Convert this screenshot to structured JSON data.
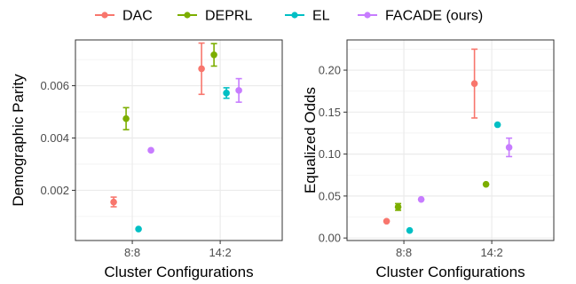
{
  "chart_data": {
    "legend": {
      "placement": "top",
      "entries": [
        {
          "name": "DAC",
          "color": "#F8766D"
        },
        {
          "name": "DEPRL",
          "color": "#7CAE00"
        },
        {
          "name": "EL",
          "color": "#00BFC4"
        },
        {
          "name": "FACADE (ours)",
          "color": "#C77CFF"
        }
      ]
    },
    "panels": [
      {
        "type": "scatter",
        "title": "",
        "xlabel": "Cluster Configurations",
        "ylabel": "Demographic Parity",
        "categories": [
          "8:8",
          "14:2"
        ],
        "ylim": [
          8e-05,
          0.00775
        ],
        "yticks": [
          0.002,
          0.004,
          0.006
        ],
        "ytick_labels": [
          "0.002",
          "0.004",
          "0.006"
        ],
        "grid": true,
        "series": [
          {
            "name": "DAC",
            "points": [
              {
                "x": "8:8",
                "y": 0.00155,
                "lo": 0.00137,
                "hi": 0.00174
              },
              {
                "x": "14:2",
                "y": 0.00665,
                "lo": 0.00567,
                "hi": 0.00763
              }
            ]
          },
          {
            "name": "DEPRL",
            "points": [
              {
                "x": "8:8",
                "y": 0.00474,
                "lo": 0.00432,
                "hi": 0.00516
              },
              {
                "x": "14:2",
                "y": 0.00718,
                "lo": 0.00675,
                "hi": 0.00761
              }
            ]
          },
          {
            "name": "EL",
            "points": [
              {
                "x": "8:8",
                "y": 0.00052,
                "lo": 0.00052,
                "hi": 0.00052
              },
              {
                "x": "14:2",
                "y": 0.00572,
                "lo": 0.00552,
                "hi": 0.00592
              }
            ]
          },
          {
            "name": "FACADE (ours)",
            "points": [
              {
                "x": "8:8",
                "y": 0.00353,
                "lo": 0.00353,
                "hi": 0.00353
              },
              {
                "x": "14:2",
                "y": 0.00582,
                "lo": 0.00537,
                "hi": 0.00627
              }
            ]
          }
        ]
      },
      {
        "type": "scatter",
        "title": "",
        "xlabel": "Cluster Configurations",
        "ylabel": "Equalized Odds",
        "categories": [
          "8:8",
          "14:2"
        ],
        "ylim": [
          -0.003,
          0.236
        ],
        "yticks": [
          0.0,
          0.05,
          0.1,
          0.15,
          0.2
        ],
        "ytick_labels": [
          "0.00",
          "0.05",
          "0.10",
          "0.15",
          "0.20"
        ],
        "grid": true,
        "series": [
          {
            "name": "DAC",
            "points": [
              {
                "x": "8:8",
                "y": 0.02,
                "lo": 0.02,
                "hi": 0.02
              },
              {
                "x": "14:2",
                "y": 0.184,
                "lo": 0.143,
                "hi": 0.225
              }
            ]
          },
          {
            "name": "DEPRL",
            "points": [
              {
                "x": "8:8",
                "y": 0.037,
                "lo": 0.033,
                "hi": 0.041
              },
              {
                "x": "14:2",
                "y": 0.064,
                "lo": 0.064,
                "hi": 0.064
              }
            ]
          },
          {
            "name": "EL",
            "points": [
              {
                "x": "8:8",
                "y": 0.009,
                "lo": 0.009,
                "hi": 0.009
              },
              {
                "x": "14:2",
                "y": 0.135,
                "lo": 0.135,
                "hi": 0.135
              }
            ]
          },
          {
            "name": "FACADE (ours)",
            "points": [
              {
                "x": "8:8",
                "y": 0.046,
                "lo": 0.046,
                "hi": 0.046
              },
              {
                "x": "14:2",
                "y": 0.108,
                "lo": 0.097,
                "hi": 0.119
              }
            ]
          }
        ]
      }
    ]
  }
}
